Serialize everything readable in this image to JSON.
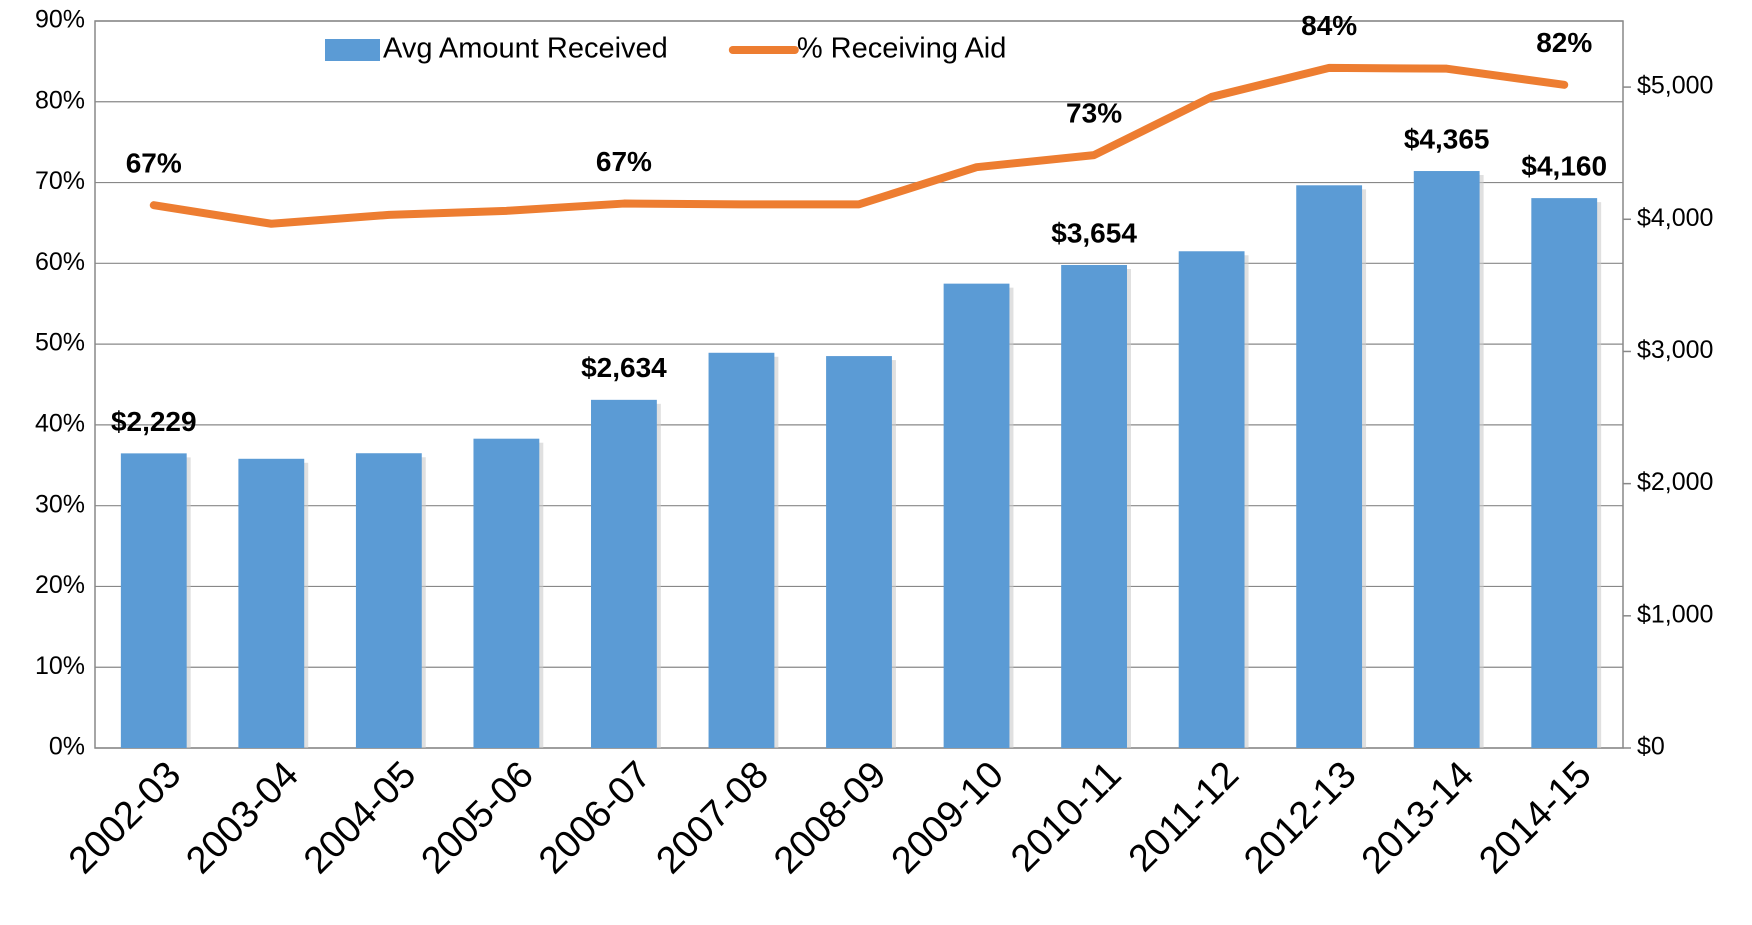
{
  "chart_data": {
    "type": "bar-line",
    "categories": [
      "2002-03",
      "2003-04",
      "2004-05",
      "2005-06",
      "2006-07",
      "2007-08",
      "2008-09",
      "2009-10",
      "2010-11",
      "2011-12",
      "2012-13",
      "2013-14",
      "2014-15"
    ],
    "series": [
      {
        "name": "Avg Amount Received",
        "type": "bar",
        "axis": "y2",
        "color": "#5b9bd5",
        "values": [
          2229,
          2188,
          2230,
          2340,
          2634,
          2990,
          2965,
          3513,
          3654,
          3758,
          4257,
          4365,
          4160
        ],
        "value_labels": [
          "$2,229",
          null,
          null,
          null,
          "$2,634",
          null,
          null,
          null,
          "$3,654",
          null,
          null,
          "$4,365",
          "$4,160"
        ]
      },
      {
        "name": "% Receiving Aid",
        "type": "line",
        "axis": "y",
        "color": "#ed7d31",
        "values": [
          67.2,
          64.9,
          66.0,
          66.5,
          67.4,
          67.3,
          67.3,
          71.9,
          73.4,
          80.6,
          84.2,
          84.1,
          82.1
        ],
        "value_labels": [
          "67%",
          null,
          null,
          null,
          "67%",
          null,
          null,
          null,
          "73%",
          null,
          "84%",
          null,
          "82%"
        ]
      }
    ],
    "ylim": [
      0,
      90
    ],
    "yticks": [
      {
        "value": 0,
        "label": "0%"
      },
      {
        "value": 10,
        "label": "10%"
      },
      {
        "value": 20,
        "label": "20%"
      },
      {
        "value": 30,
        "label": "30%"
      },
      {
        "value": 40,
        "label": "40%"
      },
      {
        "value": 50,
        "label": "50%"
      },
      {
        "value": 60,
        "label": "60%"
      },
      {
        "value": 70,
        "label": "70%"
      },
      {
        "value": 80,
        "label": "80%"
      },
      {
        "value": 90,
        "label": "90%"
      }
    ],
    "y2lim": [
      0,
      5500
    ],
    "y2ticks": [
      {
        "value": 0,
        "label": "$0"
      },
      {
        "value": 1000,
        "label": "$1,000"
      },
      {
        "value": 2000,
        "label": "$2,000"
      },
      {
        "value": 3000,
        "label": "$3,000"
      },
      {
        "value": 4000,
        "label": "$4,000"
      },
      {
        "value": 5000,
        "label": "$5,000"
      }
    ],
    "grid": true,
    "legend": "top"
  }
}
